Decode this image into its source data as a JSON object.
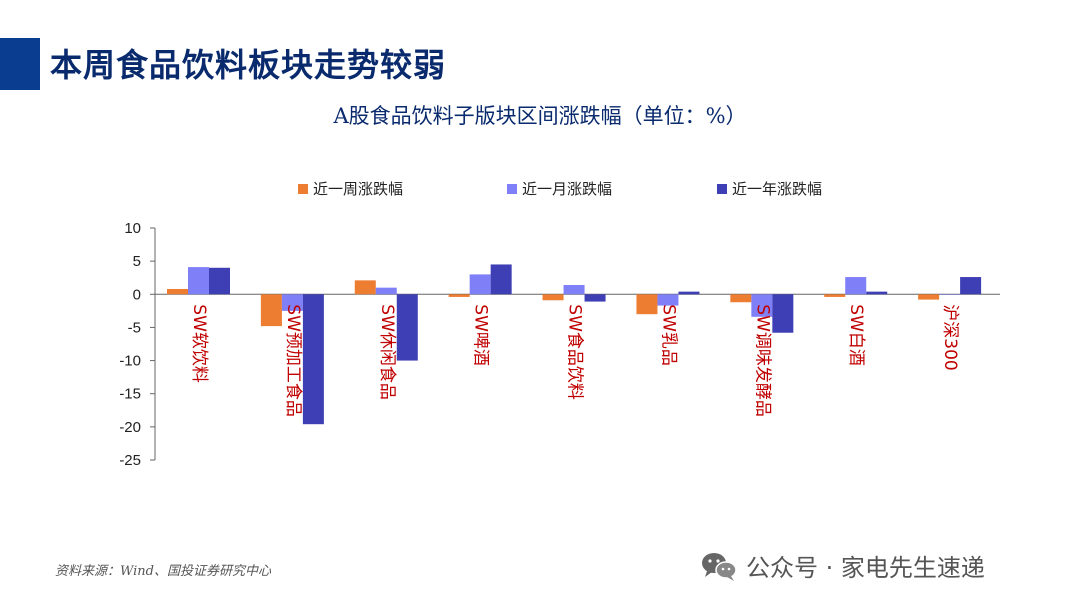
{
  "page": {
    "title": "本周食品饮料板块走势较弱",
    "source": "资料来源：Wind、国投证券研究中心",
    "watermark": "公众号 · 家电先生速递"
  },
  "colors": {
    "accent_bar": "#0a3d8f",
    "title": "#0a2a6e",
    "category_label": "#c00000",
    "series": [
      "#ed7d31",
      "#7f7ff7",
      "#3f3fb5"
    ]
  },
  "icons": {
    "watermark_icon": "wechat-icon"
  },
  "chart_data": {
    "type": "bar",
    "title": "A股食品饮料子版块区间涨跌幅（单位：%）",
    "xlabel": "",
    "ylabel": "",
    "ylim": [
      -25,
      10
    ],
    "yticks": [
      10,
      5,
      0,
      -5,
      -10,
      -15,
      -20,
      -25
    ],
    "legend_position": "top",
    "categories": [
      "SW软饮料",
      "SW预加工食品",
      "SW休闲食品",
      "SW啤酒",
      "SW食品饮料",
      "SW乳品",
      "SW调味发酵品",
      "SW白酒",
      "沪深300"
    ],
    "series": [
      {
        "name": "近一周涨跌幅",
        "values": [
          0.8,
          -4.8,
          2.1,
          -0.4,
          -0.9,
          -3.0,
          -1.2,
          -0.4,
          -0.8
        ]
      },
      {
        "name": "近一月涨跌幅",
        "values": [
          4.1,
          -2.5,
          1.0,
          3.0,
          1.4,
          -1.7,
          -3.4,
          2.6,
          0.0
        ]
      },
      {
        "name": "近一年涨跌幅",
        "values": [
          4.0,
          -19.6,
          -10.0,
          4.5,
          -1.1,
          0.4,
          -5.8,
          0.4,
          2.6
        ]
      }
    ]
  }
}
